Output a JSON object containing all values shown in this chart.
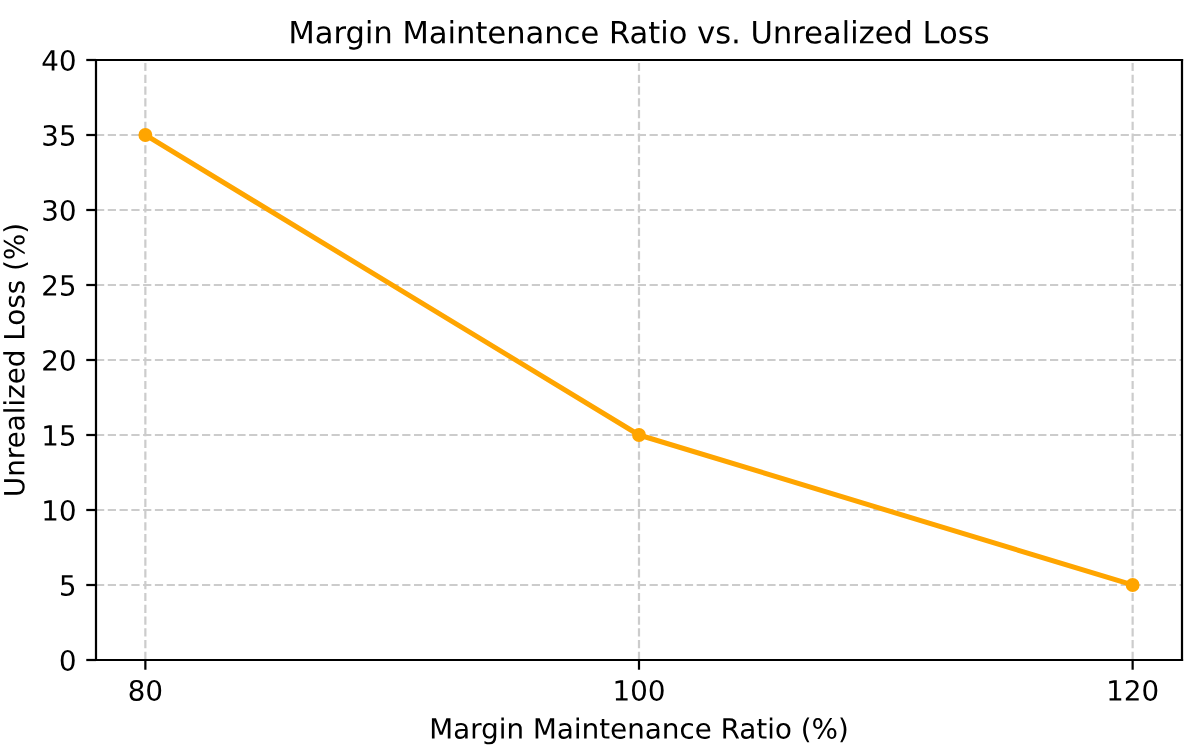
{
  "chart_data": {
    "type": "line",
    "title": "Margin Maintenance Ratio vs. Unrealized Loss",
    "xlabel": "Margin Maintenance Ratio (%)",
    "ylabel": "Unrealized Loss (%)",
    "x": [
      80,
      100,
      120
    ],
    "series": [
      {
        "color": "#ffa500",
        "values": [
          35,
          15,
          5
        ]
      }
    ],
    "xlim": [
      78,
      122
    ],
    "xticks": [
      80,
      100,
      120
    ],
    "ylim": [
      0,
      40
    ],
    "yticks": [
      0,
      5,
      10,
      15,
      20,
      25,
      30,
      35,
      40
    ],
    "grid": true,
    "marker": "circle",
    "line_style": "solid"
  }
}
